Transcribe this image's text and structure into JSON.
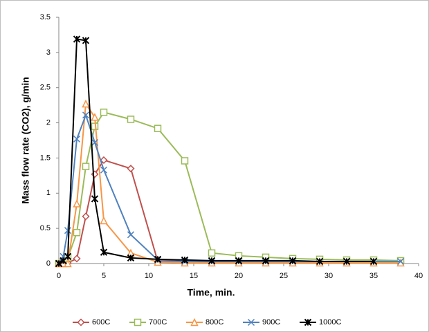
{
  "chart_data": {
    "type": "line",
    "y_label": "Mass flow rate (CO2), g/min",
    "x_label": "Time, min.",
    "x": [
      0,
      0.5,
      1,
      2,
      3,
      4,
      5,
      8,
      11,
      14,
      17,
      20,
      23,
      26,
      29,
      32,
      35,
      38
    ],
    "series": [
      {
        "name": "600C",
        "color": "#c0504d",
        "marker": "diamond",
        "values": [
          0,
          0,
          0.01,
          0.07,
          0.67,
          1.27,
          1.47,
          1.35,
          0.03,
          0.02,
          0.02,
          0.02,
          0.02,
          0.02,
          0.02,
          0.02,
          0.02,
          0.02
        ]
      },
      {
        "name": "700C",
        "color": "#9bbb59",
        "marker": "square",
        "values": [
          0,
          0.02,
          0.08,
          0.44,
          1.38,
          1.95,
          2.15,
          2.05,
          1.92,
          1.46,
          0.15,
          0.11,
          0.09,
          0.07,
          0.06,
          0.05,
          0.05,
          0.04
        ]
      },
      {
        "name": "800C",
        "color": "#f79646",
        "marker": "triangle",
        "values": [
          0,
          0,
          0,
          0.85,
          2.27,
          2.08,
          0.61,
          0.15,
          0.02,
          0.01,
          0.01,
          0.01,
          0.01,
          0.01,
          0.01,
          0.01,
          0.01,
          0.01
        ]
      },
      {
        "name": "900C",
        "color": "#4f81bd",
        "marker": "x",
        "values": [
          0,
          0.1,
          0.47,
          1.77,
          2.11,
          1.72,
          1.33,
          0.41,
          0.05,
          0.03,
          0.03,
          0.03,
          0.03,
          0.03,
          0.03,
          0.03,
          0.03,
          0.03
        ]
      },
      {
        "name": "1000C",
        "color": "#000000",
        "marker": "star",
        "values": [
          0,
          0.04,
          0.1,
          3.19,
          3.17,
          0.92,
          0.16,
          0.08,
          0.06,
          0.05,
          0.04,
          0.04,
          0.04,
          0.04,
          0.03,
          0.03,
          0.03,
          null
        ]
      }
    ],
    "xlim": [
      0,
      40
    ],
    "xticks": [
      0,
      5,
      10,
      15,
      20,
      25,
      30,
      35,
      40
    ],
    "ylim": [
      0,
      3.5
    ],
    "yticks": [
      0,
      0.5,
      1,
      1.5,
      2,
      2.5,
      3,
      3.5
    ],
    "legend": "bottom"
  }
}
